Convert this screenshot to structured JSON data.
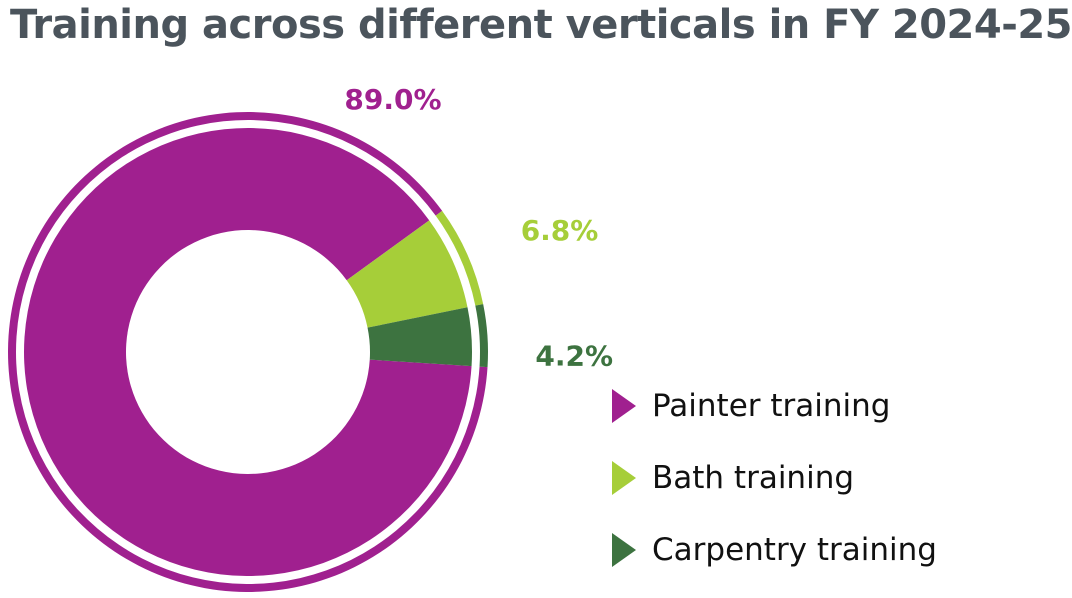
{
  "chart_data": {
    "type": "pie",
    "title": "Training across different verticals in FY 2024-25",
    "categories": [
      "Painter training",
      "Bath training",
      "Carpentry training"
    ],
    "values": [
      89.0,
      6.8,
      4.2
    ],
    "value_labels": [
      "89.0%",
      "6.8%",
      "4.2%"
    ],
    "colors": [
      "#a0208f",
      "#a6ce39",
      "#3d7340"
    ],
    "donut": true,
    "legend_position": "bottom-right"
  }
}
